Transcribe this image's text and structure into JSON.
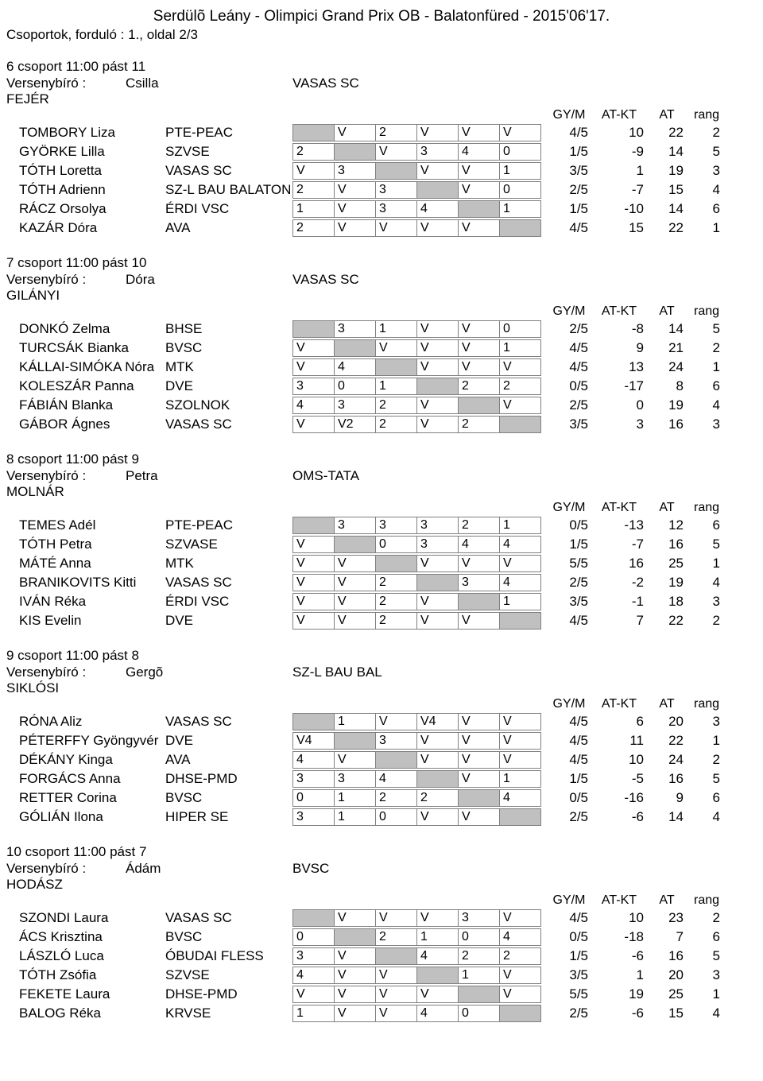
{
  "title": "Serdülõ Leány - Olimpici Grand Prix OB - Balatonfüred - 2015'06'17.",
  "subheader": "Csoportok, forduló : 1.,  oldal 2/3",
  "stat_headers": {
    "gym": "GY/M",
    "atkt": "AT-KT",
    "at": "AT",
    "rang": "rang"
  },
  "ref_label_prefix": "Versenybíró : ",
  "groups": [
    {
      "info": "6 csoport   11:00    pást 11",
      "ref_last": "FEJÉR",
      "ref_first": "Csilla",
      "ref_club": "VASAS SC",
      "rows": [
        {
          "name": "TOMBORY Liza",
          "club": "PTE-PEAC",
          "cells": [
            "",
            "V",
            "2",
            "V",
            "V",
            "V"
          ],
          "diag": 0,
          "gym": "4/5",
          "atkt": "10",
          "at": "22",
          "rang": "2"
        },
        {
          "name": "GYÖRKE Lilla",
          "club": "SZVSE",
          "cells": [
            "2",
            "",
            "V",
            "3",
            "4",
            "0"
          ],
          "diag": 1,
          "gym": "1/5",
          "atkt": "-9",
          "at": "14",
          "rang": "5"
        },
        {
          "name": "TÓTH Loretta",
          "club": "VASAS SC",
          "cells": [
            "V",
            "3",
            "",
            "V",
            "V",
            "1"
          ],
          "diag": 2,
          "gym": "3/5",
          "atkt": "1",
          "at": "19",
          "rang": "3"
        },
        {
          "name": "TÓTH Adrienn",
          "club": "SZ-L BAU BALATON",
          "cells": [
            "2",
            "V",
            "3",
            "",
            "V",
            "0"
          ],
          "diag": 3,
          "gym": "2/5",
          "atkt": "-7",
          "at": "15",
          "rang": "4"
        },
        {
          "name": "RÁCZ Orsolya",
          "club": "ÉRDI VSC",
          "cells": [
            "1",
            "V",
            "3",
            "4",
            "",
            "1"
          ],
          "diag": 4,
          "gym": "1/5",
          "atkt": "-10",
          "at": "14",
          "rang": "6"
        },
        {
          "name": "KAZÁR Dóra",
          "club": "AVA",
          "cells": [
            "2",
            "V",
            "V",
            "V",
            "V",
            ""
          ],
          "diag": 5,
          "gym": "4/5",
          "atkt": "15",
          "at": "22",
          "rang": "1"
        }
      ]
    },
    {
      "info": "7 csoport   11:00    pást 10",
      "ref_last": "GILÁNYI",
      "ref_first": "Dóra",
      "ref_club": "VASAS SC",
      "rows": [
        {
          "name": "DONKÓ Zelma",
          "club": "BHSE",
          "cells": [
            "",
            "3",
            "1",
            "V",
            "V",
            "0"
          ],
          "diag": 0,
          "gym": "2/5",
          "atkt": "-8",
          "at": "14",
          "rang": "5"
        },
        {
          "name": "TURCSÁK Bianka",
          "club": "BVSC",
          "cells": [
            "V",
            "",
            "V",
            "V",
            "V",
            "1"
          ],
          "diag": 1,
          "gym": "4/5",
          "atkt": "9",
          "at": "21",
          "rang": "2"
        },
        {
          "name": "KÁLLAI-SIMÓKA Nóra",
          "club": "MTK",
          "cells": [
            "V",
            "4",
            "",
            "V",
            "V",
            "V"
          ],
          "diag": 2,
          "gym": "4/5",
          "atkt": "13",
          "at": "24",
          "rang": "1"
        },
        {
          "name": "KOLESZÁR Panna",
          "club": "DVE",
          "cells": [
            "3",
            "0",
            "1",
            "",
            "2",
            "2"
          ],
          "diag": 3,
          "gym": "0/5",
          "atkt": "-17",
          "at": "8",
          "rang": "6"
        },
        {
          "name": "FÁBIÁN Blanka",
          "club": "SZOLNOK",
          "cells": [
            "4",
            "3",
            "2",
            "V",
            "",
            "V"
          ],
          "diag": 4,
          "gym": "2/5",
          "atkt": "0",
          "at": "19",
          "rang": "4"
        },
        {
          "name": "GÁBOR Ágnes",
          "club": "VASAS SC",
          "cells": [
            "V",
            "V2",
            "2",
            "V",
            "2",
            ""
          ],
          "diag": 5,
          "gym": "3/5",
          "atkt": "3",
          "at": "16",
          "rang": "3"
        }
      ]
    },
    {
      "info": "8 csoport   11:00    pást 9",
      "ref_last": "MOLNÁR",
      "ref_first": "Petra",
      "ref_club": "OMS-TATA",
      "rows": [
        {
          "name": "TEMES Adél",
          "club": "PTE-PEAC",
          "cells": [
            "",
            "3",
            "3",
            "3",
            "2",
            "1"
          ],
          "diag": 0,
          "gym": "0/5",
          "atkt": "-13",
          "at": "12",
          "rang": "6"
        },
        {
          "name": "TÓTH Petra",
          "club": "SZVASE",
          "cells": [
            "V",
            "",
            "0",
            "3",
            "4",
            "4"
          ],
          "diag": 1,
          "gym": "1/5",
          "atkt": "-7",
          "at": "16",
          "rang": "5"
        },
        {
          "name": "MÁTÉ Anna",
          "club": "MTK",
          "cells": [
            "V",
            "V",
            "",
            "V",
            "V",
            "V"
          ],
          "diag": 2,
          "gym": "5/5",
          "atkt": "16",
          "at": "25",
          "rang": "1"
        },
        {
          "name": "BRANIKOVITS Kitti",
          "club": "VASAS SC",
          "cells": [
            "V",
            "V",
            "2",
            "",
            "3",
            "4"
          ],
          "diag": 3,
          "gym": "2/5",
          "atkt": "-2",
          "at": "19",
          "rang": "4"
        },
        {
          "name": "IVÁN Réka",
          "club": "ÉRDI VSC",
          "cells": [
            "V",
            "V",
            "2",
            "V",
            "",
            "1"
          ],
          "diag": 4,
          "gym": "3/5",
          "atkt": "-1",
          "at": "18",
          "rang": "3"
        },
        {
          "name": "KIS Evelin",
          "club": "DVE",
          "cells": [
            "V",
            "V",
            "2",
            "V",
            "V",
            ""
          ],
          "diag": 5,
          "gym": "4/5",
          "atkt": "7",
          "at": "22",
          "rang": "2"
        }
      ]
    },
    {
      "info": "9 csoport   11:00    pást 8",
      "ref_last": "SIKLÓSI",
      "ref_first": "Gergõ",
      "ref_club": "SZ-L BAU BAL",
      "rows": [
        {
          "name": "RÓNA Aliz",
          "club": "VASAS SC",
          "cells": [
            "",
            "1",
            "V",
            "V4",
            "V",
            "V"
          ],
          "diag": 0,
          "gym": "4/5",
          "atkt": "6",
          "at": "20",
          "rang": "3"
        },
        {
          "name": "PÉTERFFY Gyöngyvér",
          "club": "DVE",
          "cells": [
            "V4",
            "",
            "3",
            "V",
            "V",
            "V"
          ],
          "diag": 1,
          "gym": "4/5",
          "atkt": "11",
          "at": "22",
          "rang": "1"
        },
        {
          "name": "DÉKÁNY Kinga",
          "club": "AVA",
          "cells": [
            "4",
            "V",
            "",
            "V",
            "V",
            "V"
          ],
          "diag": 2,
          "gym": "4/5",
          "atkt": "10",
          "at": "24",
          "rang": "2"
        },
        {
          "name": "FORGÁCS Anna",
          "club": "DHSE-PMD",
          "cells": [
            "3",
            "3",
            "4",
            "",
            "V",
            "1"
          ],
          "diag": 3,
          "gym": "1/5",
          "atkt": "-5",
          "at": "16",
          "rang": "5"
        },
        {
          "name": "RETTER Corina",
          "club": "BVSC",
          "cells": [
            "0",
            "1",
            "2",
            "2",
            "",
            "4"
          ],
          "diag": 4,
          "gym": "0/5",
          "atkt": "-16",
          "at": "9",
          "rang": "6"
        },
        {
          "name": "GÓLIÁN Ilona",
          "club": "HIPER SE",
          "cells": [
            "3",
            "1",
            "0",
            "V",
            "V",
            ""
          ],
          "diag": 5,
          "gym": "2/5",
          "atkt": "-6",
          "at": "14",
          "rang": "4"
        }
      ]
    },
    {
      "info": "10 csoport   11:00    pást 7",
      "ref_last": "HODÁSZ",
      "ref_first": "Ádám",
      "ref_club": "BVSC",
      "rows": [
        {
          "name": "SZONDI Laura",
          "club": "VASAS SC",
          "cells": [
            "",
            "V",
            "V",
            "V",
            "3",
            "V"
          ],
          "diag": 0,
          "gym": "4/5",
          "atkt": "10",
          "at": "23",
          "rang": "2"
        },
        {
          "name": "ÁCS Krisztina",
          "club": "BVSC",
          "cells": [
            "0",
            "",
            "2",
            "1",
            "0",
            "4"
          ],
          "diag": 1,
          "gym": "0/5",
          "atkt": "-18",
          "at": "7",
          "rang": "6"
        },
        {
          "name": "LÁSZLÓ Luca",
          "club": "ÓBUDAI FLESS",
          "cells": [
            "3",
            "V",
            "",
            "4",
            "2",
            "2"
          ],
          "diag": 2,
          "gym": "1/5",
          "atkt": "-6",
          "at": "16",
          "rang": "5"
        },
        {
          "name": "TÓTH Zsófia",
          "club": "SZVSE",
          "cells": [
            "4",
            "V",
            "V",
            "",
            "1",
            "V"
          ],
          "diag": 3,
          "gym": "3/5",
          "atkt": "1",
          "at": "20",
          "rang": "3"
        },
        {
          "name": "FEKETE Laura",
          "club": "DHSE-PMD",
          "cells": [
            "V",
            "V",
            "V",
            "V",
            "",
            "V"
          ],
          "diag": 4,
          "gym": "5/5",
          "atkt": "19",
          "at": "25",
          "rang": "1"
        },
        {
          "name": "BALOG Réka",
          "club": "KRVSE",
          "cells": [
            "1",
            "V",
            "V",
            "4",
            "0",
            ""
          ],
          "diag": 5,
          "gym": "2/5",
          "atkt": "-6",
          "at": "15",
          "rang": "4"
        }
      ]
    }
  ]
}
